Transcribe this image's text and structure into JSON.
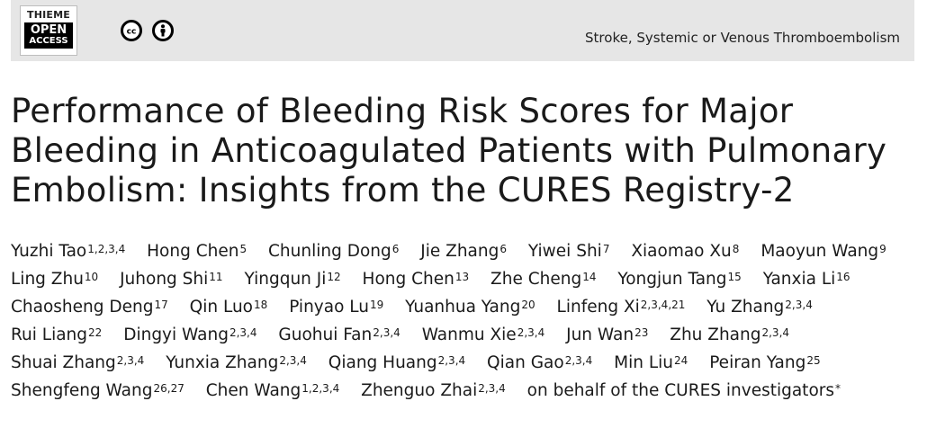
{
  "header": {
    "logo": {
      "line1": "THIEME",
      "line2": "OPEN",
      "line3": "ACCESS"
    },
    "license_icons": [
      "cc-icon",
      "by-attribution-icon"
    ],
    "journal_section": "Stroke, Systemic or Venous Thromboembolism"
  },
  "article": {
    "title": "Performance of Bleeding Risk Scores for Major Bleeding in Anticoagulated Patients with Pulmonary Embolism: Insights from the CURES Registry-2",
    "authors": [
      {
        "name": "Yuzhi Tao",
        "aff": "1,2,3,4"
      },
      {
        "name": "Hong Chen",
        "aff": "5"
      },
      {
        "name": "Chunling Dong",
        "aff": "6"
      },
      {
        "name": "Jie Zhang",
        "aff": "6"
      },
      {
        "name": "Yiwei Shi",
        "aff": "7"
      },
      {
        "name": "Xiaomao Xu",
        "aff": "8"
      },
      {
        "name": "Maoyun Wang",
        "aff": "9"
      },
      {
        "name": "Ling Zhu",
        "aff": "10"
      },
      {
        "name": "Juhong Shi",
        "aff": "11"
      },
      {
        "name": "Yingqun Ji",
        "aff": "12"
      },
      {
        "name": "Hong Chen",
        "aff": "13"
      },
      {
        "name": "Zhe Cheng",
        "aff": "14"
      },
      {
        "name": "Yongjun Tang",
        "aff": "15"
      },
      {
        "name": "Yanxia Li",
        "aff": "16"
      },
      {
        "name": "Chaosheng Deng",
        "aff": "17"
      },
      {
        "name": "Qin Luo",
        "aff": "18"
      },
      {
        "name": "Pinyao Lu",
        "aff": "19"
      },
      {
        "name": "Yuanhua Yang",
        "aff": "20"
      },
      {
        "name": "Linfeng Xi",
        "aff": "2,3,4,21"
      },
      {
        "name": "Yu Zhang",
        "aff": "2,3,4"
      },
      {
        "name": "Rui Liang",
        "aff": "22"
      },
      {
        "name": "Dingyi Wang",
        "aff": "2,3,4"
      },
      {
        "name": "Guohui Fan",
        "aff": "2,3,4"
      },
      {
        "name": "Wanmu Xie",
        "aff": "2,3,4"
      },
      {
        "name": "Jun Wan",
        "aff": "23"
      },
      {
        "name": "Zhu Zhang",
        "aff": "2,3,4"
      },
      {
        "name": "Shuai Zhang",
        "aff": "2,3,4"
      },
      {
        "name": "Yunxia Zhang",
        "aff": "2,3,4"
      },
      {
        "name": "Qiang Huang",
        "aff": "2,3,4"
      },
      {
        "name": "Qian Gao",
        "aff": "2,3,4"
      },
      {
        "name": "Min Liu",
        "aff": "24"
      },
      {
        "name": "Peiran Yang",
        "aff": "25"
      },
      {
        "name": "Shengfeng Wang",
        "aff": "26,27"
      },
      {
        "name": "Chen Wang",
        "aff": "1,2,3,4"
      },
      {
        "name": "Zhenguo Zhai",
        "aff": "2,3,4"
      }
    ],
    "trailing_text": "on behalf of the CURES investigators",
    "trailing_marker": "*"
  }
}
